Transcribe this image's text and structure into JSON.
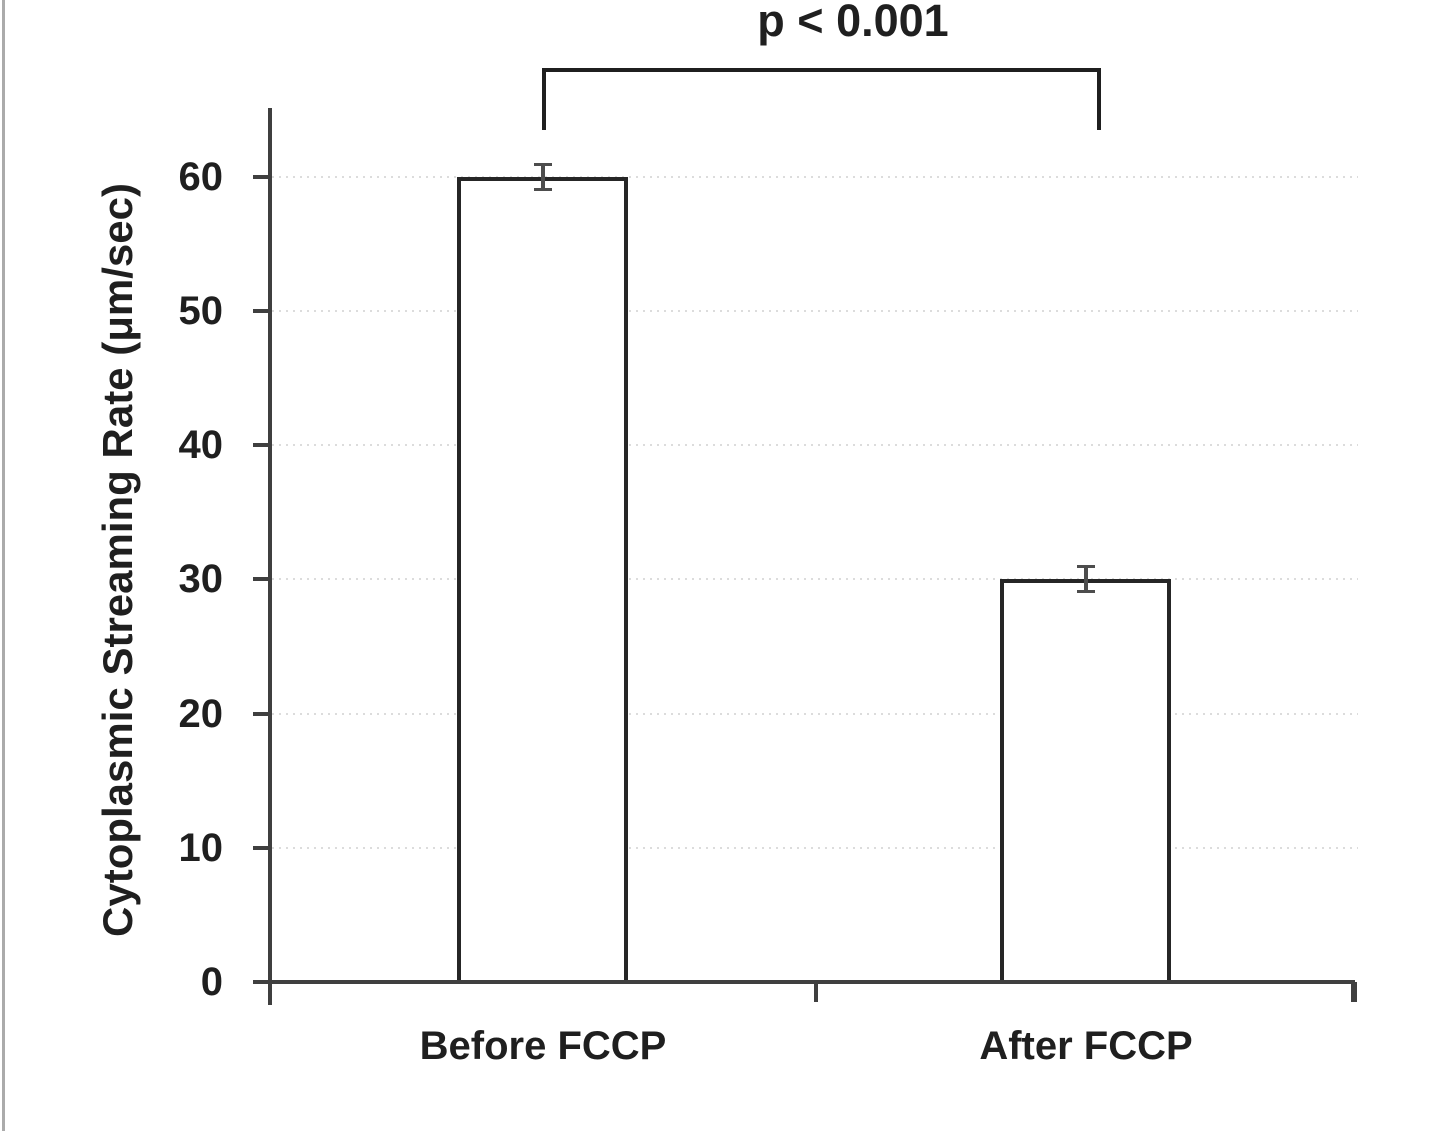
{
  "chart_data": {
    "type": "bar",
    "title": "",
    "categories": [
      "Before FCCP",
      "After FCCP"
    ],
    "values": [
      60,
      30
    ],
    "errors": [
      1,
      1
    ],
    "xlabel": "",
    "ylabel": "Cytoplasmic Streaming Rate (μm/sec)",
    "yticks": [
      0,
      10,
      20,
      30,
      40,
      50,
      60
    ],
    "ylim": [
      0,
      65
    ],
    "grid": "horizontal-dotted",
    "legend": "none",
    "annotation": {
      "text": "p < 0.001",
      "connects": [
        "Before FCCP",
        "After FCCP"
      ]
    },
    "colors": {
      "bar_fill": "#ffffff",
      "bar_border": "#262626",
      "axis": "#3f3f3f",
      "gridline": "#dcdcdc",
      "error_bar": "#4d4d4d",
      "text": "#1f1f1f",
      "frame_border": "#ababab"
    }
  }
}
